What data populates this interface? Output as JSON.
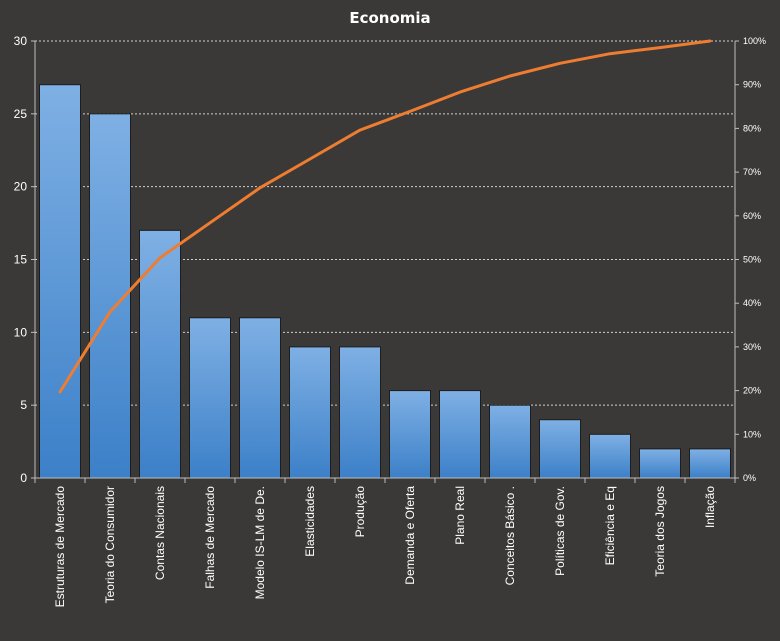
{
  "chart_data": {
    "type": "bar",
    "title": "Economia",
    "categories": [
      "Estruturas de Mercado",
      "Teoria do Consumidor",
      "Contas Nacionais",
      "Falhas de Mercado",
      "Modelo IS-LM de De.",
      "Elasticidades",
      "Produção",
      "Demanda e Oferta",
      "Plano Real",
      "Conceitos Básico .",
      "Políticas de Gov.",
      "Eficiência e Eq",
      "Teoria dos Jogos",
      "Inflação"
    ],
    "series": [
      {
        "type": "bar",
        "axis": "left",
        "values": [
          27,
          25,
          17,
          11,
          11,
          9,
          9,
          6,
          6,
          5,
          4,
          3,
          2,
          2
        ]
      },
      {
        "type": "line",
        "axis": "right",
        "values": [
          19.7,
          38.0,
          50.4,
          58.4,
          66.4,
          73.0,
          79.6,
          83.9,
          88.3,
          92.0,
          94.9,
          97.1,
          98.5,
          100
        ]
      }
    ],
    "y_left": {
      "ylim": [
        0,
        30
      ],
      "ticks": [
        "0",
        "5",
        "10",
        "15",
        "20",
        "25",
        "30"
      ]
    },
    "y_right": {
      "ylim": [
        0,
        100
      ],
      "ticks": [
        "0%",
        "10%",
        "20%",
        "30%",
        "40%",
        "50%",
        "60%",
        "70%",
        "80%",
        "90%",
        "100%"
      ]
    },
    "grid": true,
    "legend": "none",
    "colors": {
      "background": "#3a3937",
      "bar_top": "#7fb0e4",
      "bar_bottom": "#3c80c8",
      "line": "#ee7d31",
      "text": "#ffffff"
    }
  }
}
